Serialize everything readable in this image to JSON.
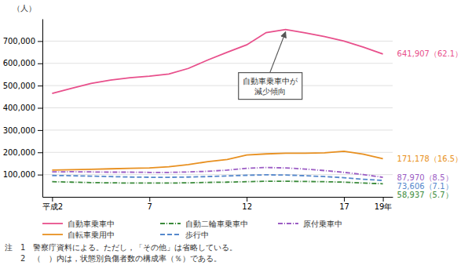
{
  "chart_data": {
    "type": "line",
    "ylabel": "（人）",
    "x": [
      2,
      3,
      4,
      5,
      6,
      7,
      8,
      9,
      10,
      11,
      12,
      13,
      14,
      15,
      16,
      17,
      18,
      19
    ],
    "xlim": [
      1.5,
      19.5
    ],
    "xticks": [
      {
        "value": 2,
        "label": "平成2"
      },
      7,
      12,
      17,
      {
        "value": 19,
        "label": "19年"
      }
    ],
    "ylim": [
      0,
      800000
    ],
    "yticks": [
      {
        "value": 100000,
        "label": "100,000"
      },
      {
        "value": 200000,
        "label": "200,000"
      },
      {
        "value": 300000,
        "label": "300,000"
      },
      {
        "value": 400000,
        "label": "400,000"
      },
      {
        "value": 500000,
        "label": "500,000"
      },
      {
        "value": 600000,
        "label": "600,000"
      },
      {
        "value": 700000,
        "label": "700,000"
      }
    ],
    "grid": true,
    "legend": "bottom",
    "series": [
      {
        "name": "自動車乗車中",
        "color": "#E8508C",
        "line_style": "solid",
        "values": [
          465000,
          488000,
          510000,
          525000,
          535000,
          542000,
          552000,
          577000,
          615000,
          650000,
          683000,
          738000,
          752000,
          737000,
          720000,
          700000,
          673000,
          641907
        ],
        "value_labels": [
          null,
          null,
          null,
          null,
          null,
          null,
          null,
          null,
          null,
          null,
          null,
          null,
          null,
          null,
          null,
          null,
          null,
          "641,907（62.1）"
        ]
      },
      {
        "name": "自動二輪車乗車中",
        "color": "#3A8A3A",
        "line_style": "dashdot",
        "values": [
          68000,
          66000,
          64000,
          63000,
          62000,
          62000,
          62000,
          63000,
          65000,
          66000,
          68000,
          70000,
          70000,
          69000,
          68000,
          66000,
          62000,
          58937
        ],
        "value_labels": [
          null,
          null,
          null,
          null,
          null,
          null,
          null,
          null,
          null,
          null,
          null,
          null,
          null,
          null,
          null,
          null,
          null,
          "58,937（5.7）"
        ]
      },
      {
        "name": "原付乗車中",
        "color": "#9B5CC4",
        "line_style": "dashdot",
        "values": [
          112000,
          113000,
          112000,
          111000,
          111000,
          110000,
          110000,
          112000,
          115000,
          120000,
          128000,
          132000,
          130000,
          125000,
          118000,
          110000,
          100000,
          87970
        ],
        "value_labels": [
          null,
          null,
          null,
          null,
          null,
          null,
          null,
          null,
          null,
          null,
          null,
          null,
          null,
          null,
          null,
          null,
          null,
          "87,970（8.5）"
        ]
      },
      {
        "name": "自転車乗用中",
        "color": "#E89020",
        "line_style": "solid",
        "values": [
          120000,
          122000,
          124000,
          126000,
          128000,
          130000,
          135000,
          145000,
          158000,
          168000,
          188000,
          193000,
          196000,
          196000,
          198000,
          205000,
          192000,
          171178
        ],
        "value_labels": [
          null,
          null,
          null,
          null,
          null,
          null,
          null,
          null,
          null,
          null,
          null,
          null,
          null,
          null,
          null,
          null,
          null,
          "171,178（16.5）"
        ]
      },
      {
        "name": "歩行中",
        "color": "#5588CC",
        "line_style": "dashed",
        "values": [
          96000,
          95000,
          93000,
          91000,
          89000,
          88000,
          88000,
          89000,
          91000,
          94000,
          97000,
          99000,
          98000,
          95000,
          91000,
          86000,
          79000,
          73606
        ],
        "value_labels": [
          null,
          null,
          null,
          null,
          null,
          null,
          null,
          null,
          null,
          null,
          null,
          null,
          null,
          null,
          null,
          null,
          null,
          "73,606（7.1）"
        ]
      }
    ],
    "annotations": [
      {
        "text": "自動車乗車中が\n減少傾向",
        "x": 14,
        "y": 752000
      }
    ],
    "notes": [
      "注　1　警察庁資料による。ただし，「その他」は省略している。",
      "　　2　（　）内は，状態別負傷者数の構成率（％）である。"
    ]
  }
}
